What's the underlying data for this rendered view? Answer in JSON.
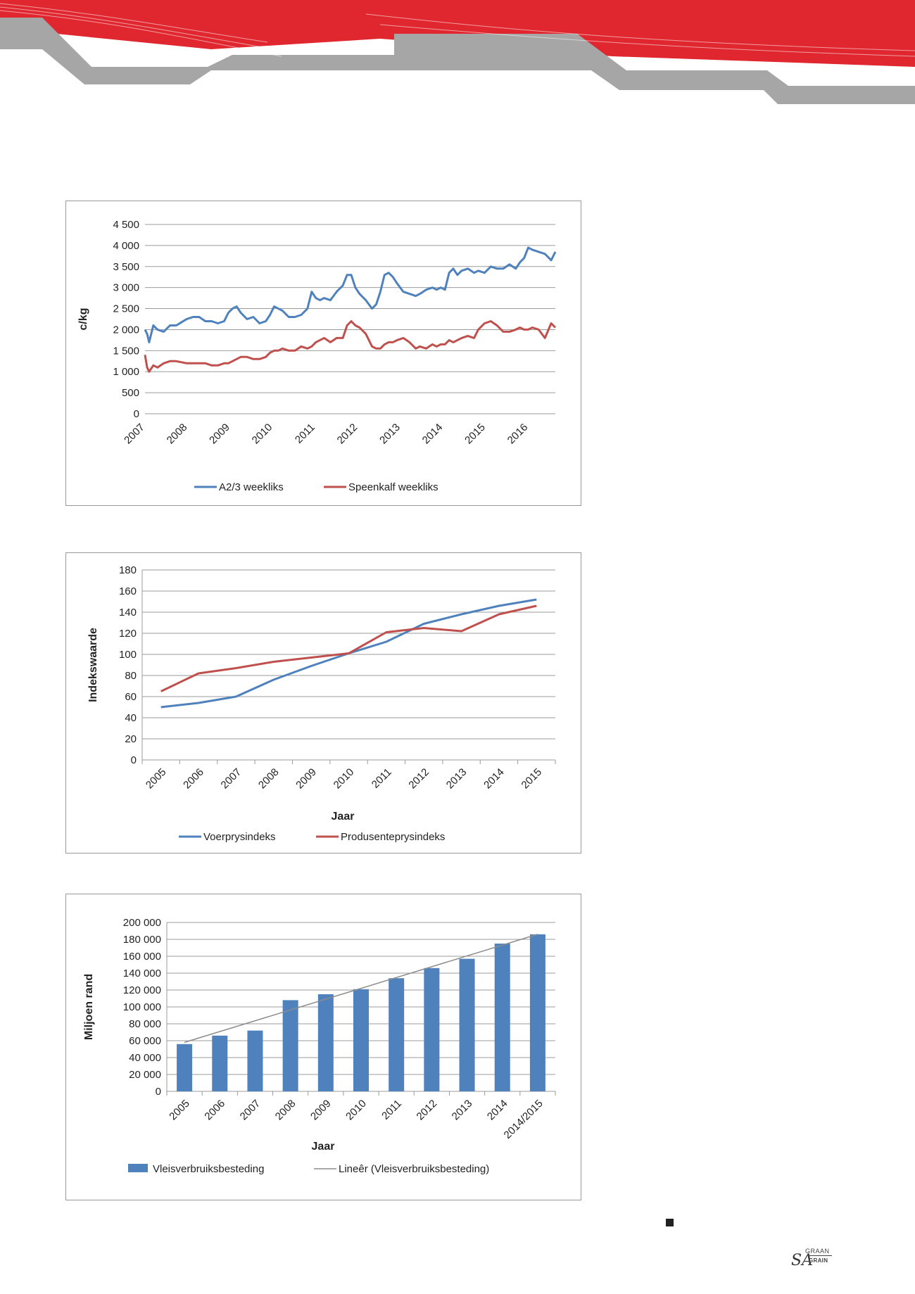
{
  "colors": {
    "red": "#e0262f",
    "grey": "#a6a6a6",
    "blue": "#4f81bd",
    "maroon": "#c0504d",
    "trend": "#8c8c8c"
  },
  "logo": {
    "sa": "SA",
    "graan": "GRAAN",
    "grain": "GRAIN"
  },
  "chart_data": [
    {
      "type": "line",
      "title": "",
      "xlabel": "",
      "ylabel": "c/kg",
      "ylim": [
        0,
        4500
      ],
      "yticks": [
        "4 500",
        "4 000",
        "3 500",
        "3 000",
        "2 500",
        "2 000",
        "1 500",
        "1 000",
        "500",
        "0"
      ],
      "x_tick_labels": [
        "2007",
        "2008",
        "2009",
        "2010",
        "2011",
        "2012",
        "2013",
        "2014",
        "2015",
        "2016"
      ],
      "grid": true,
      "legend_position": "bottom",
      "x": [
        2007.0,
        2007.05,
        2007.1,
        2007.2,
        2007.3,
        2007.45,
        2007.6,
        2007.75,
        2008.0,
        2008.15,
        2008.3,
        2008.45,
        2008.6,
        2008.75,
        2008.9,
        2009.0,
        2009.1,
        2009.2,
        2009.3,
        2009.45,
        2009.6,
        2009.75,
        2009.9,
        2010.0,
        2010.1,
        2010.2,
        2010.3,
        2010.45,
        2010.6,
        2010.75,
        2010.9,
        2011.0,
        2011.1,
        2011.2,
        2011.3,
        2011.45,
        2011.6,
        2011.75,
        2011.85,
        2011.95,
        2012.05,
        2012.15,
        2012.3,
        2012.45,
        2012.55,
        2012.65,
        2012.75,
        2012.85,
        2012.95,
        2013.05,
        2013.2,
        2013.35,
        2013.5,
        2013.6,
        2013.75,
        2013.9,
        2014.0,
        2014.1,
        2014.2,
        2014.3,
        2014.4,
        2014.5,
        2014.6,
        2014.75,
        2014.9,
        2015.0,
        2015.15,
        2015.3,
        2015.45,
        2015.6,
        2015.75,
        2015.9,
        2016.0,
        2016.1,
        2016.2,
        2016.3,
        2016.45,
        2016.6,
        2016.75,
        2016.85
      ],
      "series": [
        {
          "name": "A2/3 weekliks",
          "color": "#4f81bd",
          "values": [
            2000,
            1900,
            1700,
            2100,
            2000,
            1950,
            2100,
            2100,
            2250,
            2300,
            2300,
            2200,
            2200,
            2150,
            2200,
            2400,
            2500,
            2550,
            2400,
            2250,
            2300,
            2150,
            2200,
            2350,
            2550,
            2500,
            2450,
            2300,
            2300,
            2350,
            2500,
            2900,
            2750,
            2700,
            2750,
            2700,
            2900,
            3050,
            3300,
            3300,
            3000,
            2850,
            2700,
            2500,
            2600,
            2900,
            3300,
            3350,
            3250,
            3100,
            2900,
            2850,
            2800,
            2850,
            2950,
            3000,
            2950,
            3000,
            2950,
            3350,
            3450,
            3300,
            3400,
            3450,
            3350,
            3400,
            3350,
            3500,
            3450,
            3450,
            3550,
            3450,
            3600,
            3700,
            3950,
            3900,
            3850,
            3800,
            3650,
            3850
          ]
        },
        {
          "name": "Speenkalf weekliks",
          "color": "#c0504d",
          "values": [
            1400,
            1100,
            1000,
            1150,
            1100,
            1200,
            1250,
            1250,
            1200,
            1200,
            1200,
            1200,
            1150,
            1150,
            1200,
            1200,
            1250,
            1300,
            1350,
            1350,
            1300,
            1300,
            1350,
            1450,
            1500,
            1500,
            1550,
            1500,
            1500,
            1600,
            1550,
            1600,
            1700,
            1750,
            1800,
            1700,
            1800,
            1800,
            2100,
            2200,
            2100,
            2050,
            1900,
            1600,
            1550,
            1550,
            1650,
            1700,
            1700,
            1750,
            1800,
            1700,
            1550,
            1600,
            1550,
            1650,
            1600,
            1650,
            1650,
            1750,
            1700,
            1750,
            1800,
            1850,
            1800,
            2000,
            2150,
            2200,
            2100,
            1950,
            1950,
            2000,
            2050,
            2000,
            2000,
            2050,
            2000,
            1800,
            2150,
            2050
          ]
        }
      ]
    },
    {
      "type": "line",
      "title": "",
      "xlabel": "Jaar",
      "ylabel": "Indekswaarde",
      "ylim": [
        0,
        180
      ],
      "yticks": [
        0,
        20,
        40,
        60,
        80,
        100,
        120,
        140,
        160,
        180
      ],
      "categories": [
        "2005",
        "2006",
        "2007",
        "2008",
        "2009",
        "2010",
        "2011",
        "2012",
        "2013",
        "2014",
        "2015"
      ],
      "grid": true,
      "legend_position": "bottom",
      "series": [
        {
          "name": "Voerprysindeks",
          "color": "#4f81bd",
          "values": [
            50,
            54,
            60,
            76,
            89,
            101,
            112,
            129,
            138,
            146,
            152
          ]
        },
        {
          "name": "Produsenteprysindeks",
          "color": "#c0504d",
          "values": [
            65,
            82,
            87,
            93,
            97,
            101,
            121,
            125,
            122,
            138,
            146
          ]
        }
      ]
    },
    {
      "type": "bar",
      "title": "",
      "xlabel": "Jaar",
      "ylabel": "Miljoen rand",
      "ylim": [
        0,
        200000
      ],
      "yticks": [
        "200 000",
        "180 000",
        "160 000",
        "140 000",
        "120 000",
        "100 000",
        "80 000",
        "60 000",
        "40 000",
        "20 000",
        "0"
      ],
      "categories": [
        "2005",
        "2006",
        "2007",
        "2008",
        "2009",
        "2010",
        "2011",
        "2012",
        "2013",
        "2014",
        "2014/2015"
      ],
      "grid": true,
      "legend_position": "bottom",
      "series": [
        {
          "name": "Vleisverbruiksbesteding",
          "color": "#4f81bd",
          "values": [
            56000,
            66000,
            72000,
            108000,
            115000,
            121000,
            134000,
            146000,
            157000,
            175000,
            186000
          ]
        }
      ],
      "trendline": {
        "name": "Lineêr (Vleisverbruiksbesteding)",
        "color": "#8c8c8c",
        "start": 58000,
        "end": 186000
      }
    }
  ]
}
